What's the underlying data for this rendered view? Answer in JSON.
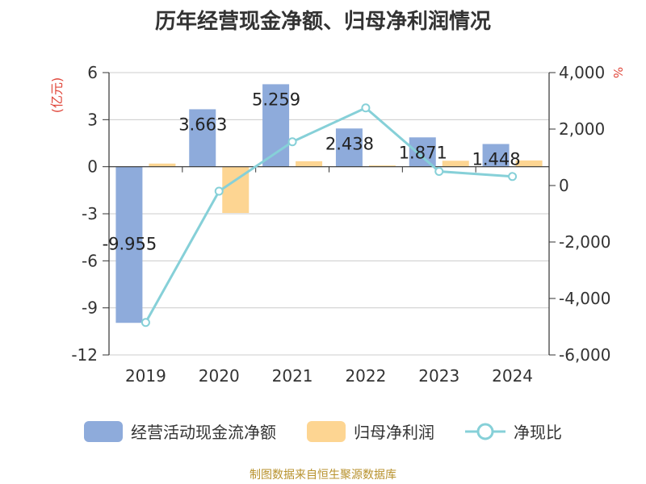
{
  "title": "历年经营现金净额、归母净利润情况",
  "source": "制图数据来自恒生聚源数据库",
  "left_axis_unit": "(亿元)",
  "right_axis_unit": "%",
  "colors": {
    "operating_cash": "#8eabdb",
    "parent_profit": "#fdd592",
    "ratio_line": "#86d0d8",
    "grid": "#cccccc",
    "axis": "#333333",
    "unit_red": "#e0463a",
    "source": "#b8922e"
  },
  "chart_data": {
    "type": "bar",
    "categories": [
      "2019",
      "2020",
      "2021",
      "2022",
      "2023",
      "2024"
    ],
    "series": [
      {
        "name": "经营活动现金流净额",
        "axis": "left",
        "type": "bar",
        "values": [
          -9.955,
          3.663,
          5.259,
          2.438,
          1.871,
          1.448
        ]
      },
      {
        "name": "归母净利润",
        "axis": "left",
        "type": "bar",
        "values": [
          0.2,
          -2.95,
          0.35,
          0.08,
          0.38,
          0.4
        ]
      },
      {
        "name": "净现比",
        "axis": "right",
        "type": "line",
        "values": [
          -4850,
          -200,
          1550,
          2750,
          500,
          320
        ]
      }
    ],
    "data_labels": [
      "-9.955",
      "3.663",
      "5.259",
      "2.438",
      "1.871",
      "1.448"
    ],
    "left_axis": {
      "ylim": [
        -12,
        6
      ],
      "ticks": [
        "6",
        "3",
        "0",
        "-3",
        "-6",
        "-9",
        "-12"
      ],
      "tick_values": [
        6,
        3,
        0,
        -3,
        -6,
        -9,
        -12
      ]
    },
    "right_axis": {
      "ylim": [
        -6000,
        4000
      ],
      "ticks": [
        "4,000",
        "2,000",
        "0",
        "-2,000",
        "-4,000",
        "-6,000"
      ],
      "tick_values": [
        4000,
        2000,
        0,
        -2000,
        -4000,
        -6000
      ]
    },
    "grid": true,
    "legend_position": "bottom"
  }
}
